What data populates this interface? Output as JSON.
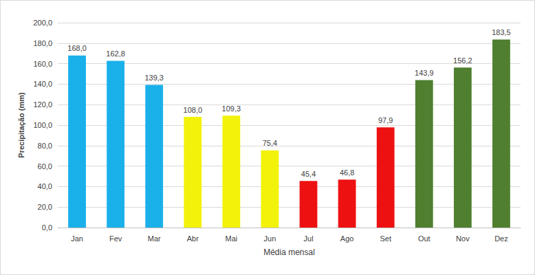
{
  "chart_data": {
    "type": "bar",
    "categories": [
      "Jan",
      "Fev",
      "Mar",
      "Abr",
      "Mai",
      "Jun",
      "Jul",
      "Ago",
      "Set",
      "Out",
      "Nov",
      "Dez"
    ],
    "values": [
      168.0,
      162.8,
      139.3,
      108.0,
      109.3,
      75.4,
      45.4,
      46.8,
      97.9,
      143.9,
      156.2,
      183.5
    ],
    "value_labels": [
      "168,0",
      "162,8",
      "139,3",
      "108,0",
      "109,3",
      "75,4",
      "45,4",
      "46,8",
      "97,9",
      "143,9",
      "156,2",
      "183,5"
    ],
    "colors": [
      "#1ab0ea",
      "#1ab0ea",
      "#1ab0ea",
      "#f2f20a",
      "#f2f20a",
      "#f2f20a",
      "#ee1111",
      "#ee1111",
      "#ee1111",
      "#4f7f2f",
      "#4f7f2f",
      "#4f7f2f"
    ],
    "xlabel": "Média mensal",
    "ylabel": "Precipitação (mm)",
    "ylim": [
      0,
      200
    ],
    "yticks": [
      {
        "value": 0,
        "label": "0,0"
      },
      {
        "value": 20,
        "label": "20,0"
      },
      {
        "value": 40,
        "label": "40,0"
      },
      {
        "value": 60,
        "label": "60,0"
      },
      {
        "value": 80,
        "label": "80,0"
      },
      {
        "value": 100,
        "label": "100,0"
      },
      {
        "value": 120,
        "label": "120,0"
      },
      {
        "value": 140,
        "label": "140,0"
      },
      {
        "value": 160,
        "label": "160,0"
      },
      {
        "value": 180,
        "label": "180,0"
      },
      {
        "value": 200,
        "label": "200,0"
      }
    ],
    "grid": true,
    "data_labels": true
  }
}
